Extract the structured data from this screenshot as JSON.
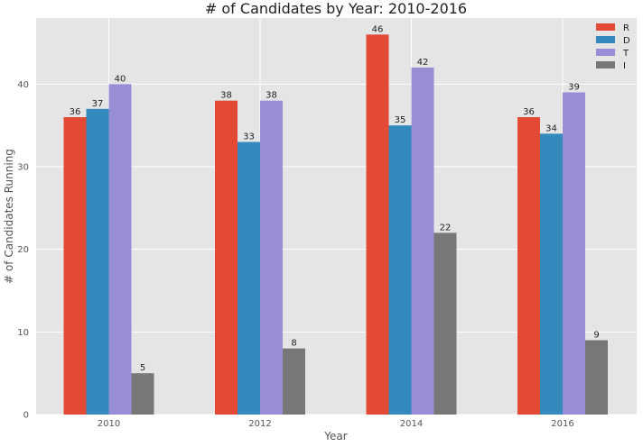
{
  "chart_data": {
    "type": "bar",
    "title": "# of Candidates by Year: 2010-2016",
    "xlabel": "Year",
    "ylabel": "# of Candidates Running",
    "categories": [
      "2010",
      "2012",
      "2014",
      "2016"
    ],
    "series": [
      {
        "name": "R",
        "values": [
          36,
          38,
          46,
          36
        ],
        "color": "#E24A33"
      },
      {
        "name": "D",
        "values": [
          37,
          33,
          35,
          34
        ],
        "color": "#348ABD"
      },
      {
        "name": "T",
        "values": [
          40,
          38,
          42,
          39
        ],
        "color": "#988ED5"
      },
      {
        "name": "I",
        "values": [
          5,
          8,
          22,
          9
        ],
        "color": "#777777"
      }
    ],
    "ylim": [
      0,
      48
    ],
    "yticks": [
      0,
      10,
      20,
      30,
      40
    ],
    "grid": true,
    "legend_position": "top-right",
    "background_color": "#E5E5E5",
    "grid_color": "#FFFFFF"
  }
}
